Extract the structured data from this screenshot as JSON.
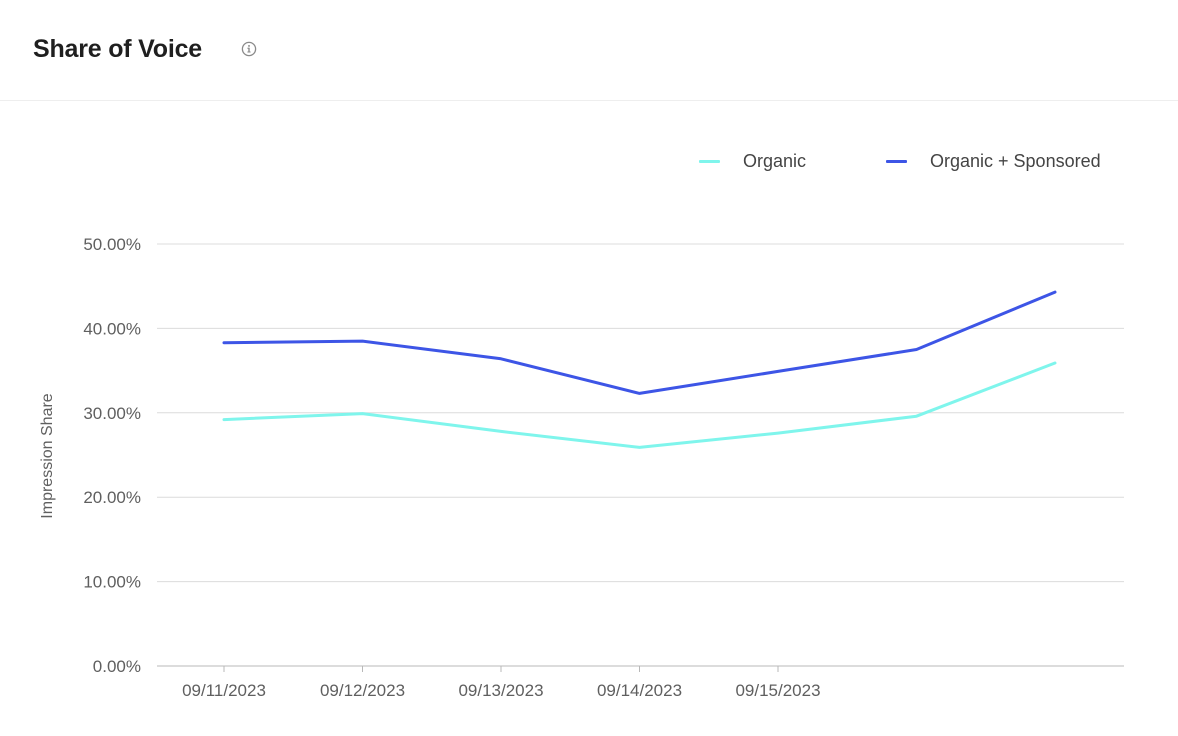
{
  "header": {
    "title": "Share of Voice",
    "info_icon": "info-circle-icon"
  },
  "chart_data": {
    "type": "line",
    "title": "Share of Voice",
    "xlabel": "",
    "ylabel": "Impression Share",
    "x_tick_labels": [
      "09/11/2023",
      "09/12/2023",
      "09/13/2023",
      "09/14/2023",
      "09/15/2023",
      "",
      ""
    ],
    "y_ticks": [
      0,
      10,
      20,
      30,
      40,
      50
    ],
    "y_tick_labels": [
      "0.00%",
      "10.00%",
      "20.00%",
      "30.00%",
      "40.00%",
      "50.00%"
    ],
    "ylim": [
      0,
      50
    ],
    "grid": true,
    "legend_position": "top-right",
    "series": [
      {
        "name": "Organic",
        "color": "#7ff5ec",
        "values": [
          29.2,
          29.9,
          27.8,
          25.9,
          27.6,
          29.6,
          35.9
        ]
      },
      {
        "name": "Organic + Sponsored",
        "color": "#3d55e6",
        "values": [
          38.3,
          38.5,
          36.4,
          32.3,
          34.9,
          37.5,
          44.3
        ]
      }
    ]
  }
}
